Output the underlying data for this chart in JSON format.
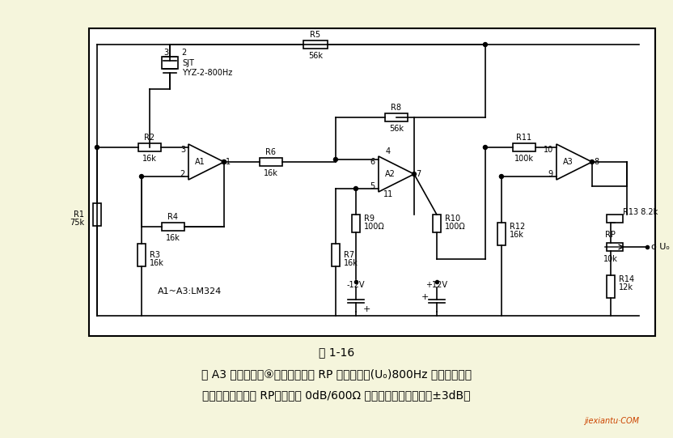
{
  "bg_color": "#f5f5dc",
  "circuit_bg": "#ffffff",
  "line_color": "#000000",
  "title": "图 1-16",
  "caption_line1": "级 A3 放大后，其⑨脚送至电位器 RP 的可调输出(Uₒ)800Hz 正弦波信号。",
  "caption_line2": "其中，调整电位器 RP，可满足 0dB/600Ω 的输出电平，可调范围±3dB。",
  "watermark": "jiexiantu·COM",
  "font_color": "#000000",
  "circuit_border": "#000000"
}
